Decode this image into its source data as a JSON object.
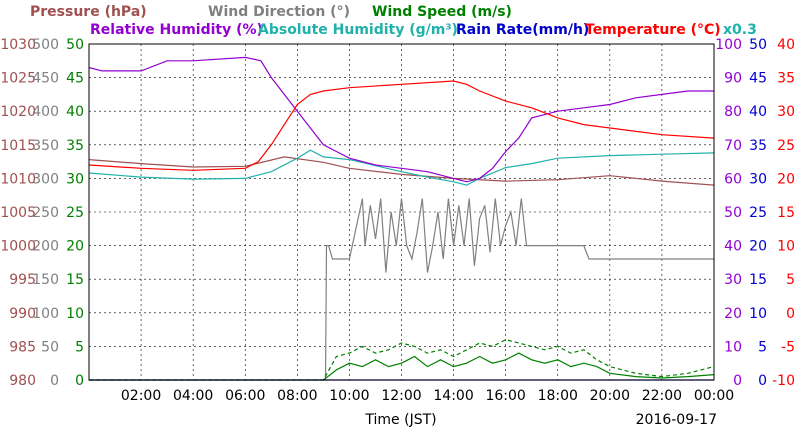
{
  "chart_data": {
    "type": "line",
    "date": "2016-09-17",
    "xlabel": "Time (JST)",
    "x_ticks": [
      "02:00",
      "04:00",
      "06:00",
      "08:00",
      "10:00",
      "12:00",
      "14:00",
      "16:00",
      "18:00",
      "20:00",
      "22:00",
      "00:00"
    ],
    "x_range_hours": [
      0,
      24
    ],
    "grid": true,
    "legend_row1": [
      {
        "text": "Pressure (hPa)",
        "color": "#a05050"
      },
      {
        "text": "Wind Direction (°)",
        "color": "#808080"
      },
      {
        "text": "Wind Speed (m/s)",
        "color": "#008000"
      }
    ],
    "legend_row2": [
      {
        "text": "Relative Humidity (%)",
        "color": "#9400d3"
      },
      {
        "text": "Absolute Humidity (g/m³)",
        "color": "#20b2aa"
      },
      {
        "text": "Rain Rate(mm/h)",
        "color": "#0000cd"
      },
      {
        "text": "Temperature (°C)",
        "color": "#ff0000"
      },
      {
        "text": "x0.3",
        "color": "#20b2aa"
      }
    ],
    "axes": {
      "pressure": {
        "color": "#a05050",
        "ticks": [
          "1030",
          "1025",
          "1020",
          "1015",
          "1010",
          "1005",
          "1000",
          "995",
          "990",
          "985",
          "980"
        ],
        "range": [
          980,
          1030
        ]
      },
      "wind_direction": {
        "color": "#808080",
        "ticks": [
          "500",
          "450",
          "400",
          "350",
          "300",
          "250",
          "200",
          "150",
          "100",
          "50",
          "0"
        ],
        "range": [
          0,
          500
        ]
      },
      "wind_speed": {
        "color": "#008000",
        "ticks": [
          "50",
          "45",
          "40",
          "35",
          "30",
          "25",
          "20",
          "15",
          "10",
          "5",
          "0"
        ],
        "range": [
          0,
          50
        ]
      },
      "relative_humidity": {
        "color": "#9400d3",
        "ticks": [
          "100",
          "90",
          "80",
          "70",
          "60",
          "50",
          "40",
          "30",
          "20",
          "10",
          "0"
        ],
        "range": [
          0,
          100
        ]
      },
      "rain_rate": {
        "color": "#0000cd",
        "ticks": [
          "50",
          "45",
          "40",
          "35",
          "30",
          "25",
          "20",
          "15",
          "10",
          "5",
          "0"
        ],
        "range": [
          0,
          50
        ]
      },
      "temperature": {
        "color": "#ff0000",
        "ticks": [
          "40",
          "35",
          "30",
          "25",
          "20",
          "15",
          "10",
          "5",
          "0",
          "-5",
          "-10"
        ],
        "range": [
          -10,
          40
        ]
      }
    },
    "series": [
      {
        "name": "Pressure (hPa)",
        "color": "#a05050",
        "axis": "pressure",
        "x": [
          0,
          2,
          4,
          6,
          7.5,
          9,
          10,
          12,
          14,
          16,
          18,
          20,
          22,
          24
        ],
        "y": [
          1012.8,
          1012.2,
          1011.7,
          1011.8,
          1013.2,
          1012.4,
          1011.5,
          1010.6,
          1010.0,
          1009.6,
          1009.8,
          1010.4,
          1009.6,
          1009.0
        ]
      },
      {
        "name": "Relative Humidity (%)",
        "color": "#9400d3",
        "axis": "relative_humidity",
        "x": [
          0,
          0.5,
          2,
          3,
          4,
          6,
          6.6,
          7,
          7.5,
          8,
          8.5,
          9,
          9.5,
          10,
          11,
          12,
          13,
          14,
          14.5,
          15,
          15.5,
          16,
          16.5,
          17,
          18,
          19,
          20,
          21,
          22,
          23,
          24
        ],
        "y": [
          93,
          92,
          92,
          95,
          95,
          96,
          95,
          90,
          85,
          80,
          75,
          70,
          68,
          66,
          64,
          63,
          62,
          60,
          59,
          60,
          63,
          68,
          72,
          78,
          80,
          81,
          82,
          84,
          85,
          86,
          86
        ]
      },
      {
        "name": "Absolute Humidity (g/m³)",
        "color": "#20b2aa",
        "axis": "pressure",
        "x": [
          0,
          2,
          4,
          6,
          7,
          8,
          8.5,
          9,
          10,
          12,
          13,
          14,
          14.5,
          15,
          16,
          17,
          18,
          20,
          22,
          24
        ],
        "y": [
          1010.8,
          1010.2,
          1009.9,
          1010.0,
          1011.0,
          1013.0,
          1014.2,
          1013.2,
          1012.8,
          1011.0,
          1010.2,
          1009.5,
          1009.0,
          1010.0,
          1011.6,
          1012.2,
          1013.0,
          1013.4,
          1013.6,
          1013.8
        ]
      },
      {
        "name": "Temperature (°C)",
        "color": "#ff0000",
        "axis": "temperature",
        "x": [
          0,
          2,
          4,
          6,
          6.5,
          7,
          7.5,
          8,
          8.5,
          9,
          10,
          12,
          14,
          14.5,
          15,
          16,
          17,
          18,
          19,
          20,
          22,
          24
        ],
        "y": [
          22.0,
          21.5,
          21.2,
          21.5,
          22.5,
          25.0,
          28.0,
          31.0,
          32.5,
          33.0,
          33.5,
          34.0,
          34.5,
          34.0,
          33.0,
          31.5,
          30.5,
          29.0,
          28.0,
          27.5,
          26.5,
          26.0
        ]
      },
      {
        "name": "Wind Direction (°)",
        "color": "#808080",
        "axis": "wind_direction",
        "x": [
          9.0,
          9.08,
          9.12,
          9.2,
          9.35,
          9.5,
          10.0,
          10.5,
          10.6,
          10.8,
          11.0,
          11.2,
          11.4,
          11.6,
          11.8,
          12.0,
          12.2,
          12.4,
          12.6,
          12.8,
          13.0,
          13.2,
          13.4,
          13.6,
          13.8,
          14.0,
          14.2,
          14.4,
          14.6,
          14.8,
          15.0,
          15.2,
          15.4,
          15.6,
          15.8,
          16.0,
          16.2,
          16.4,
          16.6,
          16.8,
          17.0,
          17.5,
          18.0,
          18.5,
          19.0,
          19.2,
          24.0
        ],
        "y": [
          0,
          0,
          200,
          200,
          180,
          180,
          180,
          270,
          200,
          260,
          210,
          270,
          160,
          250,
          200,
          270,
          200,
          180,
          220,
          270,
          160,
          200,
          250,
          180,
          270,
          200,
          260,
          200,
          270,
          170,
          240,
          260,
          190,
          270,
          200,
          230,
          250,
          200,
          270,
          200,
          200,
          200,
          200,
          200,
          200,
          180,
          180
        ]
      },
      {
        "name": "Wind Speed (m/s)",
        "color": "#008000",
        "axis": "wind_speed",
        "x": [
          0,
          9.0,
          9.5,
          10.0,
          10.5,
          11.0,
          11.5,
          12.0,
          12.5,
          13.0,
          13.5,
          14.0,
          14.5,
          15.0,
          15.5,
          16.0,
          16.5,
          17.0,
          17.5,
          18.0,
          18.5,
          19.0,
          19.5,
          20.0,
          21.0,
          22.0,
          23.0,
          24.0
        ],
        "y": [
          0,
          0,
          1.5,
          2.5,
          2.0,
          3.0,
          2.0,
          2.5,
          3.5,
          2.0,
          3.0,
          2.0,
          2.5,
          3.5,
          2.5,
          3.0,
          4.0,
          3.0,
          2.5,
          3.0,
          2.0,
          2.5,
          2.0,
          1.0,
          0.5,
          0.3,
          0.5,
          0.8
        ]
      },
      {
        "name": "Wind Speed gust (m/s)",
        "color": "#008000",
        "axis": "wind_speed",
        "dashed": true,
        "x": [
          0,
          9.0,
          9.5,
          10.0,
          10.5,
          11.0,
          11.5,
          12.0,
          12.5,
          13.0,
          13.5,
          14.0,
          14.5,
          15.0,
          15.5,
          16.0,
          16.5,
          17.0,
          17.5,
          18.0,
          18.5,
          19.0,
          19.5,
          20.0,
          21.0,
          22.0,
          23.0,
          24.0
        ],
        "y": [
          0,
          0,
          3.5,
          4.0,
          5.0,
          4.0,
          4.5,
          5.5,
          5.0,
          4.0,
          4.5,
          3.5,
          4.5,
          5.5,
          5.0,
          6.0,
          5.5,
          5.0,
          4.5,
          5.0,
          4.0,
          4.5,
          3.0,
          2.0,
          1.0,
          0.5,
          1.0,
          2.0
        ]
      },
      {
        "name": "Rain Rate(mm/h)",
        "color": "#0000cd",
        "axis": "rain_rate",
        "x": [
          0,
          24
        ],
        "y": [
          0,
          0
        ]
      }
    ]
  }
}
